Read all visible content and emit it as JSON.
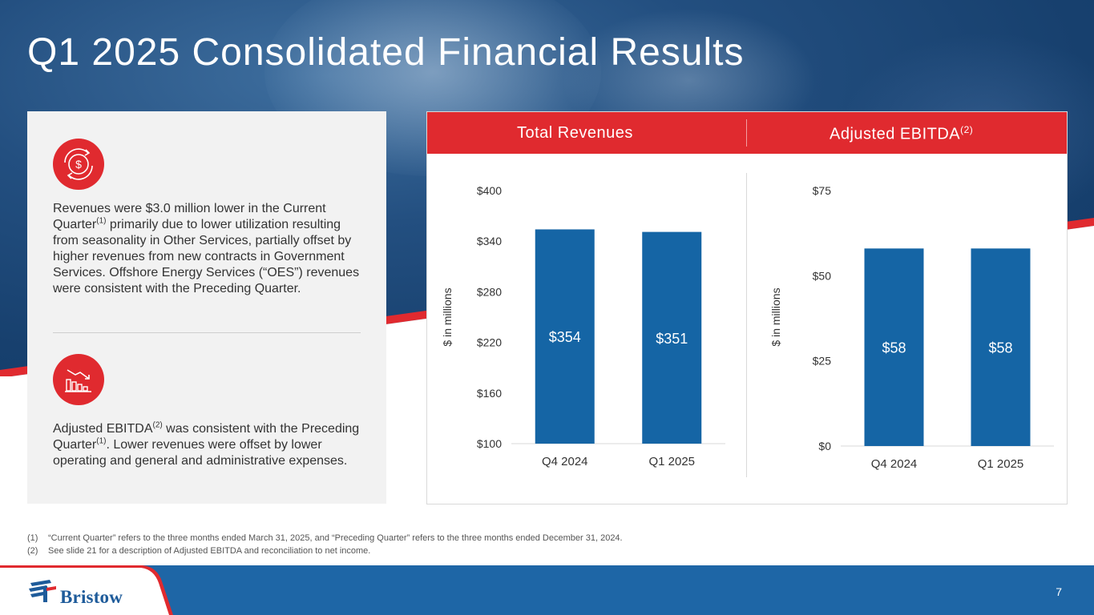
{
  "slide": {
    "title": "Q1 2025 Consolidated Financial Results",
    "page_number": "7"
  },
  "left_panel": {
    "revenue_icon": "dollar-cycle-icon",
    "revenue_text_a": "Revenues were $3.0 million lower in the Current Quarter",
    "revenue_sup": "(1)",
    "revenue_text_b": " primarily due to lower utilization resulting from seasonality in Other Services, partially offset by higher revenues from new contracts in Government Services. Offshore Energy Services (“OES”) revenues were consistent with the Preceding Quarter.",
    "ebitda_icon": "declining-bar-chart-icon",
    "ebitda_text_a": "Adjusted EBITDA",
    "ebitda_sup_a": "(2)",
    "ebitda_text_b": " was consistent with the Preceding Quarter",
    "ebitda_sup_b": "(1)",
    "ebitda_text_c": ". Lower revenues were offset by lower operating and general and administrative expenses."
  },
  "chart_headers": {
    "revenues": "Total Revenues",
    "ebitda": "Adjusted EBITDA",
    "ebitda_sup": "(2)"
  },
  "chart_data": [
    {
      "type": "bar",
      "title": "Total Revenues",
      "categories": [
        "Q4 2024",
        "Q1 2025"
      ],
      "values": [
        354,
        351
      ],
      "data_labels": [
        "$354",
        "$351"
      ],
      "ylabel": "$ in millions",
      "ylim": [
        100,
        400
      ],
      "yticks": [
        100,
        160,
        220,
        280,
        340,
        400
      ],
      "ytick_labels": [
        "$100",
        "$160",
        "$220",
        "$280",
        "$340",
        "$400"
      ],
      "bar_color": "#1565a5",
      "grid": false
    },
    {
      "type": "bar",
      "title": "Adjusted EBITDA",
      "categories": [
        "Q4 2024",
        "Q1 2025"
      ],
      "values": [
        58,
        58
      ],
      "data_labels": [
        "$58",
        "$58"
      ],
      "ylabel": "$ in millions",
      "ylim": [
        0,
        75
      ],
      "yticks": [
        0,
        25,
        50,
        75
      ],
      "ytick_labels": [
        "$0",
        "$25",
        "$50",
        "$75"
      ],
      "bar_color": "#1565a5",
      "grid": false
    }
  ],
  "footnotes": [
    {
      "num": "(1)",
      "text": "“Current Quarter” refers to the three months ended March 31, 2025, and “Preceding Quarter” refers to the three months ended December 31, 2024."
    },
    {
      "num": "(2)",
      "text": "See slide 21 for a description of Adjusted EBITDA and reconciliation to net income."
    }
  ],
  "footer": {
    "logo_text": "Bristow",
    "logo_icon": "bristow-mark-icon"
  },
  "colors": {
    "accent_red": "#e02a2f",
    "bar_blue": "#1565a5",
    "footer_blue": "#1e66a6",
    "panel_gray": "#f2f2f2"
  }
}
